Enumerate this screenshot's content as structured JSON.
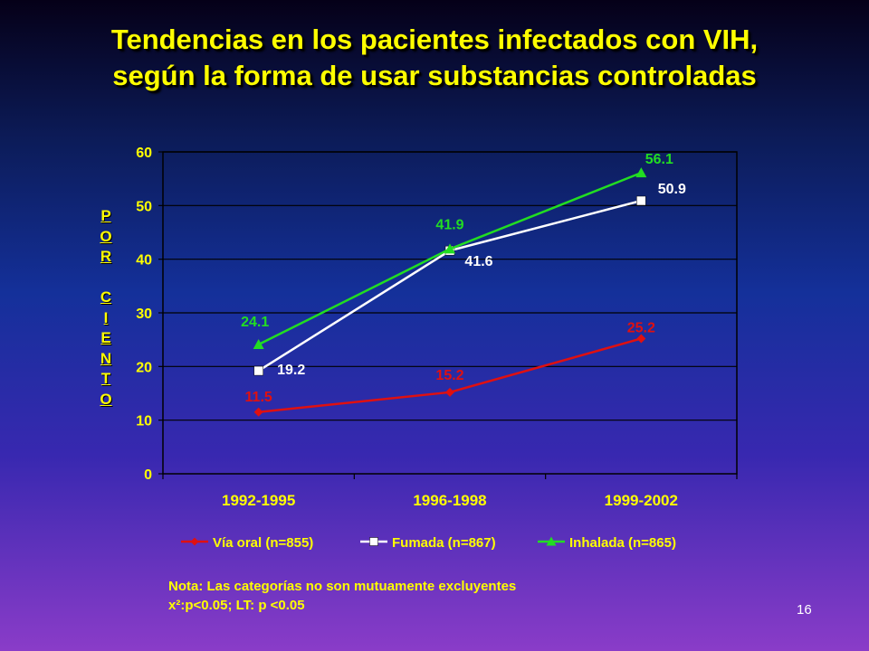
{
  "title_line1": "Tendencias en los pacientes infectados con VIH,",
  "title_line2": "según la forma de usar substancias controladas",
  "ylabel_letters": [
    "P",
    "O",
    "R",
    "",
    "C",
    "I",
    "E",
    "N",
    "T",
    "O"
  ],
  "note_line1": "Nota: Las categorías no son mutuamente excluyentes",
  "note_line2": "x²:p<0.05;  LT: p <0.05",
  "page_number": "16",
  "chart_data": {
    "type": "line",
    "categories": [
      "1992-1995",
      "1996-1998",
      "1999-2002"
    ],
    "ylim": [
      0,
      60
    ],
    "yticks": [
      0,
      10,
      20,
      30,
      40,
      50,
      60
    ],
    "ylabel": "POR CIENTO",
    "grid": true,
    "legend_position": "bottom",
    "series": [
      {
        "name": "Vía oral (n=855)",
        "values": [
          11.5,
          15.2,
          25.2
        ],
        "color": "#e01010",
        "marker": "diamond",
        "labels": [
          "11.5",
          "15.2",
          "25.2"
        ]
      },
      {
        "name": "Fumada (n=867)",
        "values": [
          19.2,
          41.6,
          50.9
        ],
        "color": "#ffffff",
        "marker": "square",
        "labels": [
          "19.2",
          "41.6",
          "50.9"
        ]
      },
      {
        "name": "Inhalada (n=865)",
        "values": [
          24.1,
          41.9,
          56.1
        ],
        "color": "#22dd22",
        "marker": "triangle",
        "labels": [
          "24.1",
          "41.9",
          "56.1"
        ]
      }
    ]
  }
}
